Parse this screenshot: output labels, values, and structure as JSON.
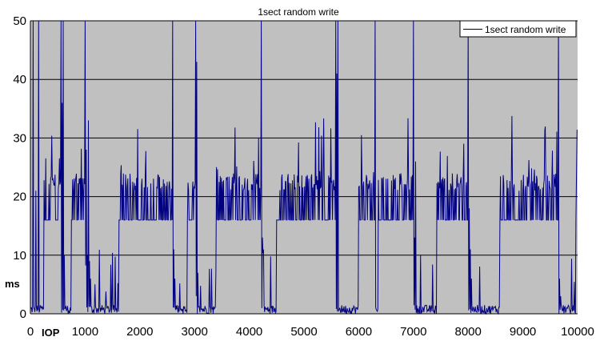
{
  "chart_data": {
    "type": "line",
    "title": "1sect random write",
    "xlabel": "IOP",
    "ylabel": "ms",
    "xlim": [
      0,
      10000
    ],
    "ylim": [
      0,
      50
    ],
    "x_ticks": [
      0,
      1000,
      2000,
      3000,
      4000,
      5000,
      6000,
      7000,
      8000,
      9000,
      10000
    ],
    "y_ticks": [
      0,
      10,
      20,
      30,
      40,
      50
    ],
    "grid": "horizontal",
    "legend": "top-right",
    "colors": {
      "plot_background": "#c0c0c0",
      "series": "#000080",
      "gridline": "#000000",
      "legend_background": "#ffffff"
    },
    "series": [
      {
        "name": "1sect random write",
        "sample_step": 10,
        "segments": [
          {
            "x_start": 0,
            "x_end": 250,
            "pattern": "mixed",
            "note_values": [
              1,
              50,
              21,
              50,
              1
            ]
          },
          {
            "x_start": 250,
            "x_end": 560,
            "pattern": "band",
            "low": 16,
            "high": 24
          },
          {
            "x_start": 560,
            "x_end": 750,
            "pattern": "spiky_low",
            "peaks": [
              50,
              36,
              50,
              10
            ]
          },
          {
            "x_start": 750,
            "x_end": 1000,
            "pattern": "band",
            "low": 16,
            "high": 24
          },
          {
            "x_start": 1000,
            "x_end": 1620,
            "pattern": "spiky_low",
            "peaks": [
              50,
              28,
              10,
              33,
              9,
              6
            ]
          },
          {
            "x_start": 1620,
            "x_end": 2600,
            "pattern": "band",
            "low": 16,
            "high": 24
          },
          {
            "x_start": 2600,
            "x_end": 2870,
            "pattern": "spiky_low",
            "peaks": [
              50,
              11,
              6
            ]
          },
          {
            "x_start": 2870,
            "x_end": 3020,
            "pattern": "band",
            "low": 16,
            "high": 24
          },
          {
            "x_start": 3020,
            "x_end": 3400,
            "pattern": "spiky_low",
            "peaks": [
              50,
              43,
              7
            ]
          },
          {
            "x_start": 3400,
            "x_end": 4220,
            "pattern": "band",
            "low": 16,
            "high": 24
          },
          {
            "x_start": 4220,
            "x_end": 4500,
            "pattern": "spiky_low",
            "peaks": [
              50,
              13,
              11
            ]
          },
          {
            "x_start": 4500,
            "x_end": 5580,
            "pattern": "band",
            "low": 16,
            "high": 24
          },
          {
            "x_start": 5580,
            "x_end": 6000,
            "pattern": "spiky_low",
            "peaks": [
              50,
              41,
              50
            ]
          },
          {
            "x_start": 6000,
            "x_end": 6300,
            "pattern": "band",
            "low": 16,
            "high": 24
          },
          {
            "x_start": 6300,
            "x_end": 6360,
            "pattern": "spiky_low",
            "peaks": [
              50
            ]
          },
          {
            "x_start": 6360,
            "x_end": 7000,
            "pattern": "band",
            "low": 16,
            "high": 24
          },
          {
            "x_start": 7000,
            "x_end": 7430,
            "pattern": "spiky_low",
            "peaks": [
              50,
              13,
              26
            ]
          },
          {
            "x_start": 7430,
            "x_end": 8000,
            "pattern": "band",
            "low": 16,
            "high": 24
          },
          {
            "x_start": 8000,
            "x_end": 8580,
            "pattern": "spiky_low",
            "peaks": [
              50,
              18,
              11,
              6
            ]
          },
          {
            "x_start": 8580,
            "x_end": 9650,
            "pattern": "band",
            "low": 16,
            "high": 24
          },
          {
            "x_start": 9650,
            "x_end": 9970,
            "pattern": "spiky_low",
            "peaks": [
              50,
              6,
              3
            ]
          },
          {
            "x_start": 9970,
            "x_end": 10000,
            "pattern": "band",
            "low": 16,
            "high": 24
          }
        ]
      }
    ]
  }
}
